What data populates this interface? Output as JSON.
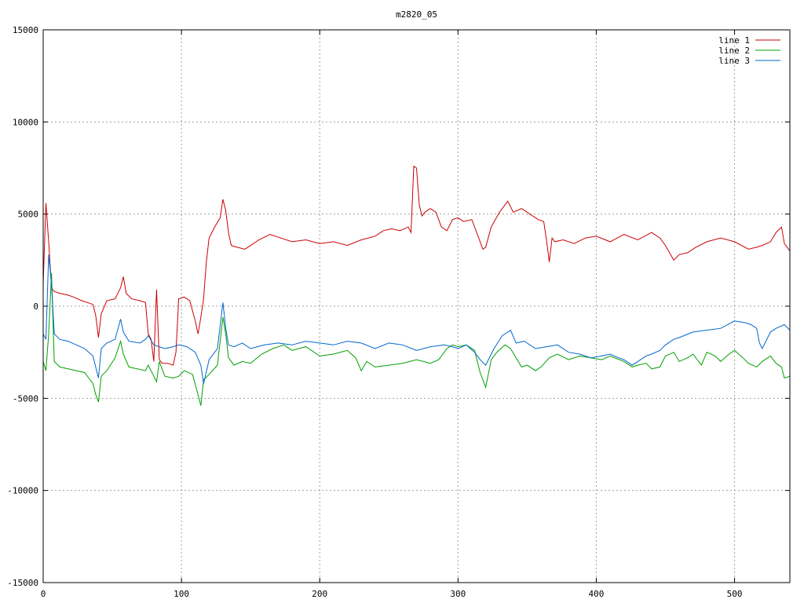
{
  "chart_data": {
    "type": "line",
    "title": "m2820_05",
    "xlabel": "",
    "ylabel": "",
    "xlim": [
      0,
      540
    ],
    "ylim": [
      -15000,
      15000
    ],
    "xticks": [
      0,
      100,
      200,
      300,
      400,
      500
    ],
    "yticks": [
      -15000,
      -10000,
      -5000,
      0,
      5000,
      10000,
      15000
    ],
    "grid": true,
    "legend_position": "top-right",
    "series": [
      {
        "name": "line 1",
        "color": "#cc0000",
        "x": [
          0,
          2,
          4,
          6,
          8,
          12,
          18,
          22,
          28,
          32,
          36,
          38,
          40,
          42,
          46,
          52,
          56,
          58,
          60,
          64,
          70,
          74,
          76,
          78,
          80,
          82,
          84,
          86,
          90,
          94,
          96,
          98,
          102,
          106,
          110,
          112,
          114,
          116,
          118,
          120,
          124,
          128,
          130,
          132,
          134,
          136,
          140,
          146,
          150,
          156,
          164,
          172,
          180,
          190,
          200,
          210,
          220,
          230,
          240,
          246,
          252,
          258,
          264,
          266,
          268,
          270,
          272,
          274,
          276,
          280,
          284,
          288,
          292,
          296,
          300,
          304,
          310,
          314,
          318,
          320,
          324,
          330,
          336,
          340,
          346,
          352,
          358,
          362,
          364,
          366,
          368,
          370,
          376,
          384,
          392,
          400,
          410,
          420,
          430,
          440,
          446,
          450,
          456,
          460,
          466,
          472,
          480,
          490,
          500,
          510,
          516,
          520,
          526,
          530,
          534,
          536,
          540
        ],
        "y": [
          1200,
          5600,
          3500,
          1000,
          800,
          700,
          600,
          500,
          300,
          200,
          100,
          -500,
          -1700,
          -400,
          300,
          400,
          1000,
          1600,
          700,
          400,
          300,
          200,
          -1500,
          -1800,
          -3000,
          900,
          -2900,
          -3100,
          -3100,
          -3200,
          -2500,
          400,
          500,
          300,
          -800,
          -1500,
          -600,
          400,
          2400,
          3700,
          4300,
          4800,
          5800,
          5200,
          4000,
          3300,
          3200,
          3100,
          3300,
          3600,
          3900,
          3700,
          3500,
          3600,
          3400,
          3500,
          3300,
          3600,
          3800,
          4100,
          4200,
          4100,
          4300,
          4000,
          7600,
          7500,
          5500,
          4900,
          5100,
          5300,
          5100,
          4300,
          4100,
          4700,
          4800,
          4600,
          4700,
          3900,
          3100,
          3200,
          4300,
          5100,
          5700,
          5100,
          5300,
          5000,
          4700,
          4600,
          3600,
          2400,
          3700,
          3500,
          3600,
          3400,
          3700,
          3800,
          3500,
          3900,
          3600,
          4000,
          3700,
          3300,
          2500,
          2800,
          2900,
          3200,
          3500,
          3700,
          3500,
          3100,
          3200,
          3300,
          3500,
          4000,
          4300,
          3400,
          3000
        ]
      },
      {
        "name": "line 2",
        "color": "#00a000",
        "x": [
          0,
          2,
          4,
          6,
          8,
          12,
          18,
          24,
          30,
          36,
          38,
          40,
          42,
          46,
          52,
          56,
          58,
          62,
          68,
          74,
          76,
          80,
          82,
          84,
          88,
          94,
          98,
          102,
          108,
          112,
          114,
          116,
          120,
          126,
          130,
          132,
          134,
          138,
          144,
          150,
          158,
          166,
          174,
          180,
          190,
          200,
          210,
          220,
          226,
          230,
          234,
          240,
          250,
          260,
          270,
          280,
          286,
          292,
          296,
          300,
          306,
          312,
          316,
          320,
          324,
          328,
          334,
          338,
          342,
          346,
          350,
          356,
          360,
          366,
          372,
          380,
          388,
          396,
          404,
          410,
          420,
          426,
          430,
          436,
          440,
          446,
          450,
          456,
          460,
          466,
          470,
          476,
          480,
          486,
          490,
          496,
          500,
          506,
          510,
          516,
          520,
          526,
          530,
          534,
          536,
          540
        ],
        "y": [
          -3000,
          -3500,
          -1500,
          1800,
          -3000,
          -3300,
          -3400,
          -3500,
          -3600,
          -4200,
          -4800,
          -5200,
          -3800,
          -3500,
          -2800,
          -1900,
          -2600,
          -3300,
          -3400,
          -3500,
          -3200,
          -3800,
          -4100,
          -3000,
          -3800,
          -3900,
          -3800,
          -3500,
          -3700,
          -4800,
          -5400,
          -4000,
          -3700,
          -3200,
          -600,
          -1500,
          -2800,
          -3200,
          -3000,
          -3100,
          -2600,
          -2300,
          -2100,
          -2400,
          -2200,
          -2700,
          -2600,
          -2400,
          -2800,
          -3500,
          -3000,
          -3300,
          -3200,
          -3100,
          -2900,
          -3100,
          -2900,
          -2300,
          -2100,
          -2200,
          -2100,
          -2400,
          -3600,
          -4400,
          -2900,
          -2500,
          -2100,
          -2300,
          -2800,
          -3300,
          -3200,
          -3500,
          -3300,
          -2800,
          -2600,
          -2900,
          -2700,
          -2800,
          -2900,
          -2700,
          -3000,
          -3300,
          -3200,
          -3100,
          -3400,
          -3300,
          -2700,
          -2500,
          -3000,
          -2800,
          -2600,
          -3200,
          -2500,
          -2700,
          -3000,
          -2600,
          -2400,
          -2800,
          -3100,
          -3300,
          -3000,
          -2700,
          -3100,
          -3300,
          -3900,
          -3800
        ]
      },
      {
        "name": "line 3",
        "color": "#0066cc",
        "x": [
          0,
          2,
          4,
          6,
          8,
          12,
          18,
          24,
          30,
          36,
          40,
          42,
          46,
          52,
          56,
          58,
          62,
          70,
          74,
          76,
          80,
          84,
          88,
          94,
          98,
          104,
          110,
          114,
          116,
          120,
          126,
          130,
          132,
          134,
          138,
          144,
          150,
          160,
          170,
          180,
          190,
          200,
          210,
          220,
          230,
          240,
          250,
          260,
          270,
          280,
          290,
          296,
          300,
          306,
          312,
          316,
          320,
          326,
          332,
          338,
          342,
          348,
          356,
          364,
          372,
          380,
          388,
          396,
          404,
          410,
          416,
          420,
          426,
          430,
          436,
          440,
          446,
          450,
          456,
          460,
          470,
          480,
          490,
          500,
          508,
          512,
          516,
          518,
          520,
          526,
          530,
          536,
          540
        ],
        "y": [
          -1500,
          -1800,
          2800,
          1200,
          -1500,
          -1800,
          -1900,
          -2100,
          -2300,
          -2700,
          -3900,
          -2300,
          -2000,
          -1800,
          -700,
          -1400,
          -1900,
          -2000,
          -1800,
          -1600,
          -2100,
          -2200,
          -2300,
          -2200,
          -2100,
          -2200,
          -2500,
          -3200,
          -4200,
          -2900,
          -2300,
          200,
          -1200,
          -2100,
          -2200,
          -2000,
          -2300,
          -2100,
          -2000,
          -2100,
          -1900,
          -2000,
          -2100,
          -1900,
          -2000,
          -2300,
          -2000,
          -2100,
          -2400,
          -2200,
          -2100,
          -2200,
          -2300,
          -2100,
          -2500,
          -2900,
          -3200,
          -2300,
          -1600,
          -1300,
          -2000,
          -1900,
          -2300,
          -2200,
          -2100,
          -2500,
          -2600,
          -2800,
          -2700,
          -2600,
          -2800,
          -2900,
          -3200,
          -3000,
          -2700,
          -2600,
          -2400,
          -2100,
          -1800,
          -1700,
          -1400,
          -1300,
          -1200,
          -800,
          -900,
          -1000,
          -1200,
          -2000,
          -2300,
          -1400,
          -1200,
          -1000,
          -1300
        ]
      }
    ]
  }
}
